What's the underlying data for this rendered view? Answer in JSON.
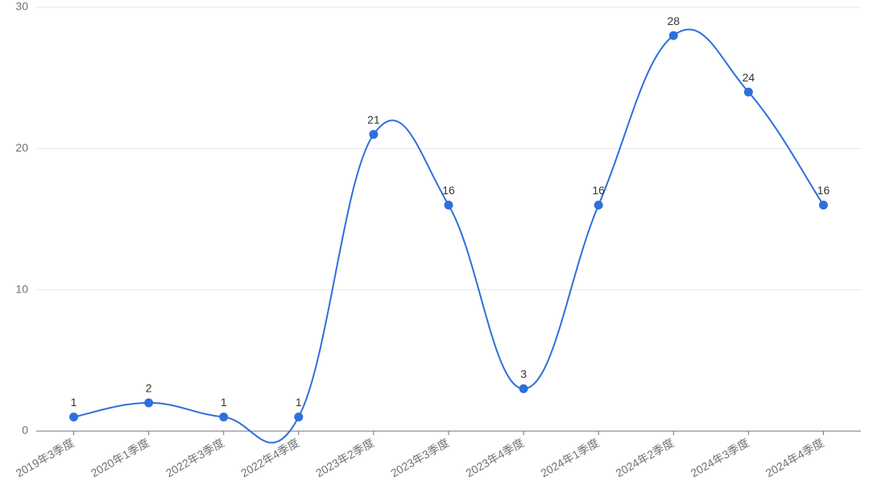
{
  "chart_data": {
    "type": "line",
    "categories": [
      "2019年3季度",
      "2020年1季度",
      "2022年3季度",
      "2022年4季度",
      "2023年2季度",
      "2023年3季度",
      "2023年4季度",
      "2024年1季度",
      "2024年2季度",
      "2024年3季度",
      "2024年4季度"
    ],
    "values": [
      1,
      2,
      1,
      1,
      21,
      16,
      3,
      16,
      28,
      24,
      16
    ],
    "color": "#2f6fdc",
    "ylim": [
      0,
      30
    ],
    "yticks": [
      0,
      10,
      20,
      30
    ],
    "grid": true,
    "smooth": true
  }
}
